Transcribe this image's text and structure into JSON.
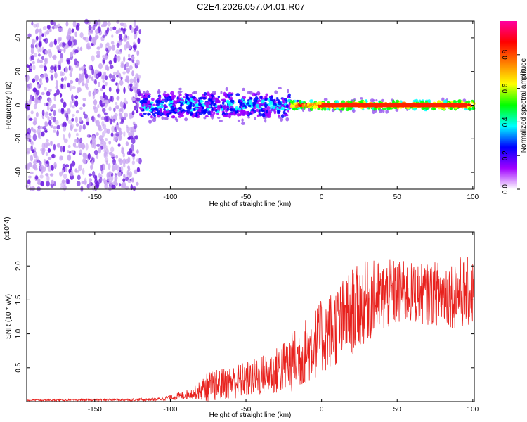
{
  "title": "C2E4.2026.057.04.01.R07",
  "chart_data": [
    {
      "type": "heatmap",
      "name": "spectrogram",
      "xlabel": "Height of straight line (km)",
      "ylabel": "Frequency (Hz)",
      "xlim": [
        -195,
        101
      ],
      "ylim": [
        -50,
        50
      ],
      "xticks": [
        -150,
        -100,
        -50,
        0,
        50,
        100
      ],
      "yticks": [
        -40,
        -20,
        0,
        20,
        40
      ],
      "colorbar": {
        "label": "Normalized spectral amplitude",
        "range": [
          0,
          1
        ],
        "ticks": [
          "0.0",
          "0.2",
          "0.4",
          "0.6",
          "0.8"
        ],
        "colors": [
          "#ffffff",
          "#a000ff",
          "#0000ff",
          "#00ffff",
          "#00ff00",
          "#ffff00",
          "#ff8000",
          "#ff0000",
          "#ff00a0"
        ]
      },
      "regions": [
        {
          "description": "broadband noise",
          "x_range": [
            -195,
            -120
          ],
          "freq_range": [
            -50,
            50
          ],
          "amplitude": 0.1
        },
        {
          "description": "noisy carrier",
          "x_range": [
            -120,
            -20
          ],
          "freq_center": 0,
          "freq_spread": 8,
          "amplitude": 0.3
        },
        {
          "description": "clean carrier",
          "x_range": [
            -20,
            101
          ],
          "freq_center": 0,
          "freq_spread": 3,
          "amplitude": 0.9
        }
      ]
    },
    {
      "type": "line",
      "name": "snr",
      "xlabel": "Height of straight line (km)",
      "ylabel": "SNR (10 * v/v)",
      "multiplier": "(x10^4)",
      "xlim": [
        -195,
        101
      ],
      "ylim": [
        0,
        2.5
      ],
      "xticks": [
        -150,
        -100,
        -50,
        0,
        50,
        100
      ],
      "yticks": [
        0.5,
        1.0,
        1.5,
        2.0
      ],
      "color": "#e8221e",
      "envelope": {
        "x": [
          -195,
          -110,
          -100,
          -85,
          -75,
          -60,
          -45,
          -30,
          -20,
          -10,
          0,
          10,
          20,
          30,
          40,
          50,
          60,
          70,
          80,
          90,
          101
        ],
        "mean": [
          0.02,
          0.03,
          0.06,
          0.12,
          0.22,
          0.28,
          0.35,
          0.45,
          0.58,
          0.75,
          0.95,
          1.12,
          1.32,
          1.48,
          1.55,
          1.6,
          1.6,
          1.58,
          1.6,
          1.62,
          1.6
        ],
        "spread": [
          0.01,
          0.02,
          0.04,
          0.08,
          0.22,
          0.25,
          0.28,
          0.35,
          0.45,
          0.5,
          0.55,
          0.6,
          0.65,
          0.6,
          0.55,
          0.5,
          0.45,
          0.45,
          0.5,
          0.55,
          0.5
        ]
      }
    }
  ]
}
